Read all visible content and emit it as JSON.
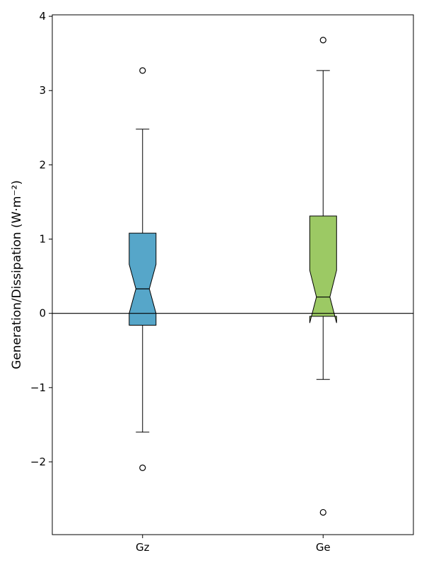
{
  "chart_data": {
    "type": "boxplot",
    "title": "",
    "xlabel": "",
    "ylabel": "Generation/Dissipation (W·m⁻²)",
    "ylim": [
      -2.98,
      4.02
    ],
    "yticks": [
      -2,
      -1,
      0,
      1,
      2,
      3,
      4
    ],
    "ytick_labels": [
      "−2",
      "−1",
      "0",
      "1",
      "2",
      "3",
      "4"
    ],
    "notched": true,
    "zero_line": 0,
    "grid": false,
    "categories": [
      "Gz",
      "Ge"
    ],
    "series": [
      {
        "name": "Gz",
        "color": "#56a6c9",
        "whisker_low": -1.6,
        "q1": -0.16,
        "median": 0.33,
        "q3": 1.08,
        "whisker_high": 2.48,
        "notch_low": 0.0,
        "notch_high": 0.66,
        "outliers": [
          3.27,
          -2.08
        ]
      },
      {
        "name": "Ge",
        "color": "#9cc964",
        "whisker_low": -0.89,
        "q1": -0.04,
        "median": 0.22,
        "q3": 1.31,
        "whisker_high": 3.27,
        "notch_low": -0.13,
        "notch_high": 0.58,
        "outliers": [
          3.68,
          -2.68
        ]
      }
    ]
  }
}
